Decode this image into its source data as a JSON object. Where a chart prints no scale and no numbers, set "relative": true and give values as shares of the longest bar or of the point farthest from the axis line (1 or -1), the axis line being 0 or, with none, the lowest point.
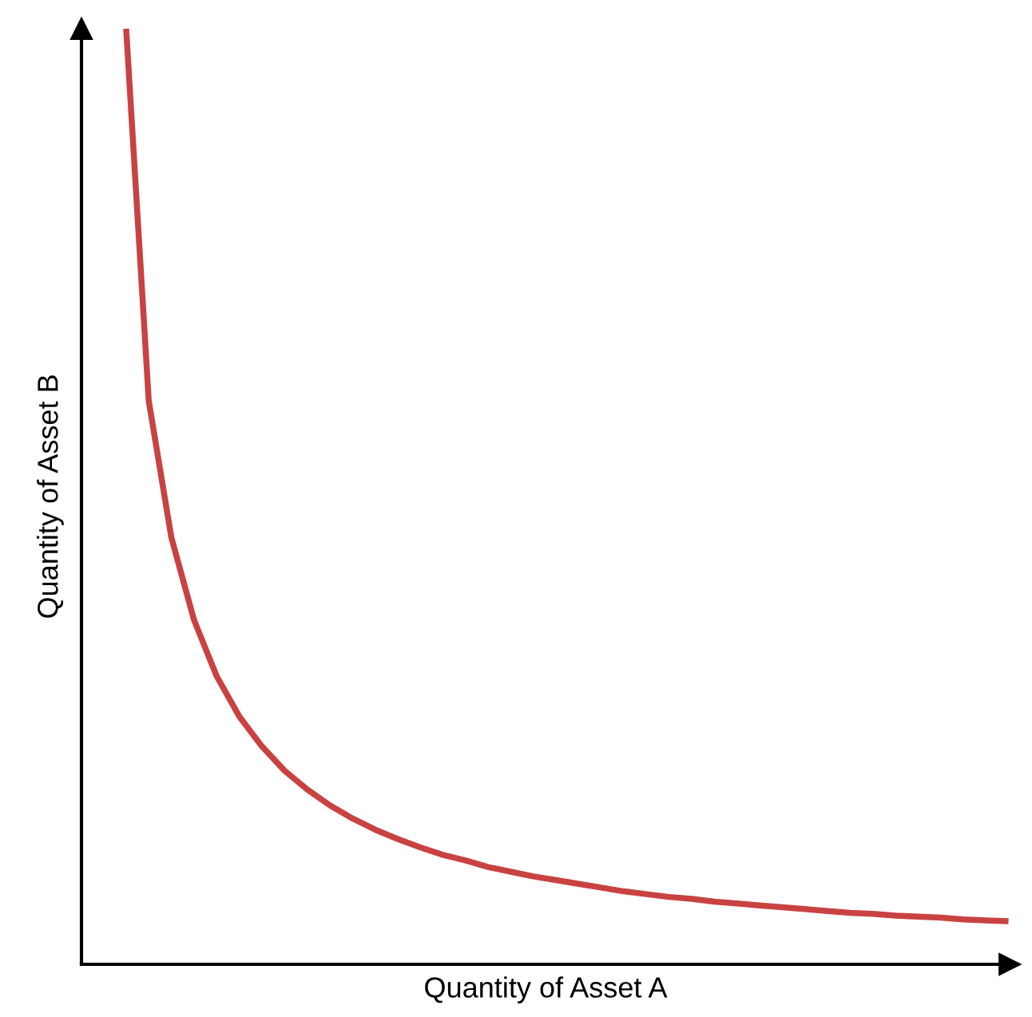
{
  "chart_data": {
    "type": "line",
    "relative": true,
    "xlabel": "Quantity of Asset A",
    "ylabel": "Quantity of Asset B",
    "categories": [
      null,
      null,
      null,
      null,
      null,
      null,
      null,
      null,
      null,
      null,
      null,
      null,
      null,
      null,
      null,
      null,
      null,
      null,
      null,
      null,
      null,
      null,
      null,
      null,
      null,
      null,
      null,
      null,
      null,
      null,
      null,
      null,
      null,
      null,
      null,
      null,
      null,
      null,
      null,
      null
    ],
    "series": [
      {
        "color": "#c94242",
        "values": [
          1.0,
          0.602,
          0.456,
          0.368,
          0.308,
          0.265,
          0.233,
          0.207,
          0.187,
          0.17,
          0.156,
          0.144,
          0.134,
          0.125,
          0.117,
          0.111,
          0.104,
          0.099,
          0.094,
          0.09,
          0.086,
          0.082,
          0.078,
          0.075,
          0.072,
          0.07,
          0.067,
          0.065,
          0.063,
          0.061,
          0.059,
          0.057,
          0.055,
          0.054,
          0.052,
          0.051,
          0.05,
          0.048,
          0.047,
          0.046
        ]
      }
    ],
    "grid": false,
    "legend": false,
    "marker": "none",
    "line_style": "solid"
  }
}
